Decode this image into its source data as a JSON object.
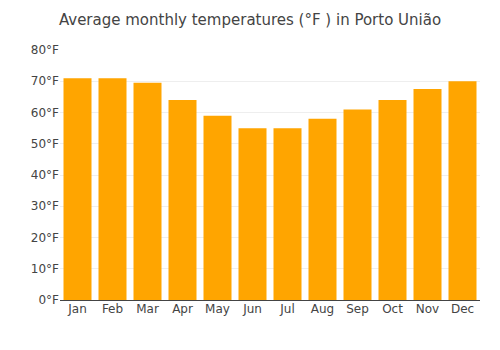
{
  "chart_data": {
    "type": "bar",
    "title": "Average monthly temperatures (°F ) in Porto União",
    "categories": [
      "Jan",
      "Feb",
      "Mar",
      "Apr",
      "May",
      "Jun",
      "Jul",
      "Aug",
      "Sep",
      "Oct",
      "Nov",
      "Dec"
    ],
    "values": [
      71.0,
      71.0,
      69.5,
      64.0,
      59.0,
      55.0,
      55.0,
      58.0,
      61.0,
      64.0,
      67.5,
      70.0
    ],
    "color": "#FFA500",
    "ylim": [
      0,
      80
    ],
    "yticks": [
      {
        "value": 0,
        "label": "0°F"
      },
      {
        "value": 10,
        "label": "10°F"
      },
      {
        "value": 20,
        "label": "20°F"
      },
      {
        "value": 30,
        "label": "30°F"
      },
      {
        "value": 40,
        "label": "40°F"
      },
      {
        "value": 50,
        "label": "50°F"
      },
      {
        "value": 60,
        "label": "60°F"
      },
      {
        "value": 70,
        "label": "70°F"
      },
      {
        "value": 80,
        "label": "80°F"
      }
    ],
    "grid": true
  }
}
